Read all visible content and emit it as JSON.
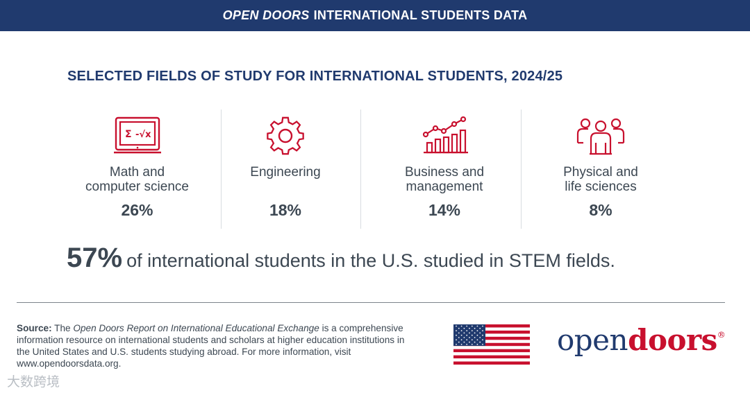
{
  "header": {
    "brand": "OPEN DOORS",
    "rest": "INTERNATIONAL STUDENTS DATA"
  },
  "section_title": "SELECTED FIELDS OF STUDY FOR INTERNATIONAL STUDENTS, 2024/25",
  "fields": [
    {
      "label_line1": "Math and",
      "label_line2": "computer science",
      "percent": "26%",
      "icon": "laptop-math-icon"
    },
    {
      "label_line1": "Engineering",
      "label_line2": "",
      "percent": "18%",
      "icon": "gear-icon"
    },
    {
      "label_line1": "Business and",
      "label_line2": "management",
      "percent": "14%",
      "icon": "growth-chart-icon"
    },
    {
      "label_line1": "Physical and",
      "label_line2": "life sciences",
      "percent": "8%",
      "icon": "people-icon"
    }
  ],
  "stem": {
    "percent": "57%",
    "text": "of international students in the U.S. studied in STEM fields."
  },
  "source": {
    "label": "Source:",
    "pre": "The",
    "title": "Open Doors Report on International Educational Exchange",
    "body": "is a comprehensive information resource on international students and scholars at higher education institutions in the United States and U.S. students studying abroad. For more information, visit www.opendoorsdata.org."
  },
  "logo": {
    "open": "open",
    "doors": "doors",
    "reg": "®"
  },
  "watermark": "大数跨境",
  "colors": {
    "navy": "#203a6e",
    "red": "#c8102e",
    "text": "#3c4752"
  }
}
